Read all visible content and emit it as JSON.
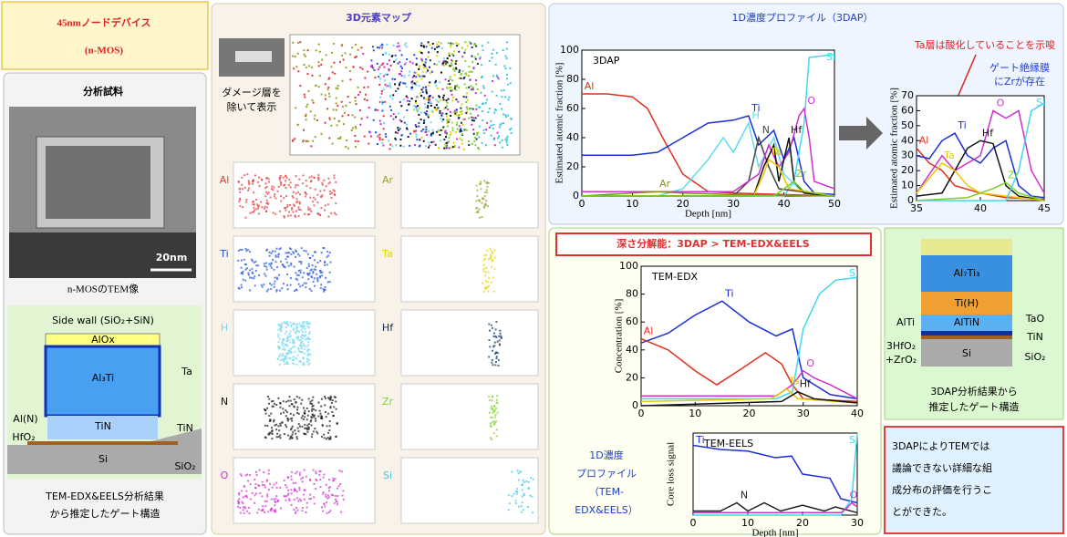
{
  "header": {
    "title": "45nmノードデバイス",
    "subtitle": "(n-MOS)"
  },
  "sample": {
    "heading": "分析試料",
    "scale_bar": "20nm",
    "tem_caption": "n-MOSのTEM像",
    "diagram": {
      "side_wall": "Side wall (SiO₂+SiN)",
      "alox": "AlOx",
      "al3ti": "Al₃Ti",
      "tin": "TiN",
      "si": "Si",
      "ta": "Ta",
      "aln": "Al(N)",
      "tin_side": "TiN",
      "hfo2": "HfO₂",
      "sio2": "SiO₂"
    },
    "caption": [
      "TEM-EDX&EELS分析結果",
      "から推定したゲート構造"
    ]
  },
  "map": {
    "title": "3D元素マップ",
    "note": [
      "ダメージ層を",
      "除いて表示"
    ],
    "elements": [
      {
        "name": "Al",
        "color": "#e03838"
      },
      {
        "name": "Ar",
        "color": "#a0a030"
      },
      {
        "name": "Ti",
        "color": "#2050e0"
      },
      {
        "name": "Ta",
        "color": "#e8d000"
      },
      {
        "name": "H",
        "color": "#70d8f0"
      },
      {
        "name": "Hf",
        "color": "#103060"
      },
      {
        "name": "N",
        "color": "#111111"
      },
      {
        "name": "Zr",
        "color": "#80d030"
      },
      {
        "name": "O",
        "color": "#d030d0"
      },
      {
        "name": "Si",
        "color": "#40c8e0"
      }
    ]
  },
  "profile": {
    "title": "1D濃度プロファイル（3DAP）",
    "resolution": "深さ分解能：3DAP > TEM-EDX&EELS",
    "tem_label": [
      "1D濃度",
      "プロファイル",
      "（TEM-",
      "EDX&EELS）"
    ],
    "annotations": [
      "Ta層は酸化していることを示唆",
      "ゲート絶縁膜",
      "にZrが存在"
    ],
    "charts": [
      {
        "type": "line",
        "label": "3DAP",
        "xlabel": "Depth [nm]",
        "ylabel": "Estimated atomic fraction [%]",
        "xlim": [
          0,
          50
        ],
        "xticks": [
          0,
          10,
          20,
          30,
          40,
          50
        ],
        "ylim": [
          0,
          100
        ],
        "yticks": [
          0,
          20,
          40,
          60,
          80,
          100
        ],
        "series": [
          {
            "name": "Al",
            "color": "#e0301e",
            "x": [
              0,
              5,
              10,
              13,
              16,
              20,
              25,
              30,
              40,
              50
            ],
            "values": [
              70,
              70,
              68,
              60,
              40,
              15,
              3,
              2,
              1,
              0
            ]
          },
          {
            "name": "Ti",
            "color": "#1a2fd8",
            "x": [
              0,
              10,
              15,
              20,
              25,
              30,
              33,
              35,
              38,
              40,
              42,
              44,
              46,
              50
            ],
            "values": [
              28,
              28,
              30,
              40,
              50,
              52,
              55,
              35,
              45,
              25,
              40,
              10,
              2,
              1
            ]
          },
          {
            "name": "H",
            "color": "#60dcec",
            "x": [
              0,
              15,
              20,
              25,
              28,
              30,
              33,
              35,
              38,
              40,
              43
            ],
            "values": [
              0,
              0,
              5,
              25,
              40,
              30,
              50,
              20,
              40,
              15,
              5
            ]
          },
          {
            "name": "Si",
            "color": "#40d8ec",
            "x": [
              0,
              40,
              42,
              44,
              45,
              50
            ],
            "values": [
              0,
              0,
              10,
              50,
              95,
              97
            ]
          },
          {
            "name": "N",
            "color": "#444444",
            "x": [
              0,
              30,
              33,
              35,
              37,
              39,
              50
            ],
            "values": [
              0,
              0,
              10,
              40,
              20,
              5,
              0
            ]
          },
          {
            "name": "O",
            "color": "#d030d0",
            "x": [
              0,
              30,
              35,
              37,
              39,
              41,
              43,
              44,
              45,
              46,
              50
            ],
            "values": [
              3,
              3,
              15,
              35,
              20,
              30,
              55,
              60,
              40,
              10,
              5
            ]
          },
          {
            "name": "Hf",
            "color": "#111111",
            "x": [
              0,
              34,
              36,
              38,
              39,
              41,
              42,
              44,
              50
            ],
            "values": [
              0,
              0,
              20,
              35,
              10,
              40,
              10,
              2,
              0
            ]
          },
          {
            "name": "Ta",
            "color": "#e8c800",
            "x": [
              0,
              34,
              36,
              37,
              39,
              41,
              50
            ],
            "values": [
              0,
              0,
              15,
              25,
              20,
              5,
              0
            ]
          },
          {
            "name": "Ar",
            "color": "#8a8a20",
            "x": [
              0,
              10,
              15,
              20,
              30,
              50
            ],
            "values": [
              0,
              2,
              3,
              2,
              1,
              0
            ]
          },
          {
            "name": "Zr",
            "color": "#7ad030",
            "x": [
              0,
              38,
              40,
              42,
              44,
              50
            ],
            "values": [
              0,
              0,
              5,
              10,
              3,
              0
            ]
          }
        ]
      },
      {
        "type": "line",
        "ylabel": "Estimated atomic fraction [%]",
        "xlim": [
          35,
          45
        ],
        "xticks": [
          35,
          40,
          45
        ],
        "ylim": [
          0,
          70
        ],
        "yticks": [
          0,
          10,
          20,
          30,
          40,
          50,
          60,
          70
        ],
        "series": [
          {
            "name": "Al",
            "color": "#e0301e",
            "x": [
              35,
              36,
              37,
              38,
              40,
              42,
              45
            ],
            "values": [
              35,
              25,
              20,
              10,
              5,
              2,
              1
            ]
          },
          {
            "name": "Ti",
            "color": "#1a2fd8",
            "x": [
              35,
              36,
              37,
              38,
              39,
              40,
              41,
              42,
              43,
              44,
              45
            ],
            "values": [
              30,
              28,
              40,
              45,
              30,
              25,
              35,
              40,
              10,
              3,
              2
            ]
          },
          {
            "name": "O",
            "color": "#d030d0",
            "x": [
              35,
              37,
              38,
              39,
              40,
              41,
              42,
              43,
              44,
              45
            ],
            "values": [
              5,
              30,
              20,
              25,
              30,
              60,
              55,
              60,
              20,
              5
            ]
          },
          {
            "name": "Hf",
            "color": "#111111",
            "x": [
              35,
              37,
              38,
              39,
              40,
              41,
              42,
              43,
              45
            ],
            "values": [
              3,
              5,
              20,
              35,
              40,
              38,
              10,
              3,
              0
            ]
          },
          {
            "name": "Ta",
            "color": "#e8c800",
            "x": [
              35,
              36,
              37,
              38,
              39,
              40,
              45
            ],
            "values": [
              5,
              15,
              25,
              20,
              10,
              5,
              0
            ]
          },
          {
            "name": "Si",
            "color": "#40d8ec",
            "x": [
              35,
              42,
              43,
              44,
              45
            ],
            "values": [
              0,
              0,
              20,
              60,
              65
            ]
          },
          {
            "name": "Zr",
            "color": "#7ad030",
            "x": [
              35,
              39,
              41,
              42,
              43,
              45
            ],
            "values": [
              0,
              2,
              8,
              12,
              5,
              0
            ]
          }
        ]
      },
      {
        "type": "line",
        "label": "TEM-EDX",
        "ylabel": "Concentration [%]",
        "xlim": [
          0,
          40
        ],
        "xticks": [
          0,
          10,
          20,
          30,
          40
        ],
        "ylim": [
          0,
          100
        ],
        "yticks": [
          0,
          20,
          40,
          60,
          80,
          100
        ],
        "series": [
          {
            "name": "Ti",
            "color": "#1a2fd8",
            "x": [
              0,
              5,
              10,
              15,
              20,
              25,
              28,
              30,
              35,
              40
            ],
            "values": [
              45,
              52,
              65,
              75,
              60,
              50,
              55,
              20,
              8,
              5
            ]
          },
          {
            "name": "Al",
            "color": "#e0301e",
            "x": [
              0,
              5,
              10,
              14,
              18,
              23,
              26,
              28,
              30,
              40
            ],
            "values": [
              48,
              40,
              25,
              15,
              25,
              38,
              30,
              15,
              5,
              3
            ]
          },
          {
            "name": "Si",
            "color": "#40d8ec",
            "x": [
              0,
              25,
              28,
              30,
              33,
              36,
              40
            ],
            "values": [
              5,
              5,
              10,
              55,
              80,
              90,
              92
            ]
          },
          {
            "name": "O",
            "color": "#d030d0",
            "x": [
              0,
              25,
              28,
              30,
              32,
              35,
              40
            ],
            "values": [
              7,
              7,
              15,
              25,
              20,
              15,
              5
            ]
          },
          {
            "name": "Ta",
            "color": "#e8c800",
            "x": [
              0,
              24,
              27,
              29,
              40
            ],
            "values": [
              3,
              5,
              12,
              5,
              2
            ]
          },
          {
            "name": "Hf",
            "color": "#111111",
            "x": [
              0,
              26,
              29,
              32,
              40
            ],
            "values": [
              0,
              3,
              10,
              5,
              2
            ]
          }
        ]
      },
      {
        "type": "line",
        "label": "TEM-EELS",
        "xlabel": "Depth [nm]",
        "ylabel": "Core loss signal",
        "xlim": [
          0,
          30
        ],
        "xticks": [
          0,
          10,
          20,
          30
        ],
        "ylim": [
          0,
          100
        ],
        "series": [
          {
            "name": "Ti",
            "color": "#1a2fd8",
            "x": [
              0,
              5,
              10,
              15,
              18,
              20,
              25,
              27,
              30
            ],
            "values": [
              85,
              80,
              78,
              70,
              72,
              50,
              45,
              20,
              15
            ]
          },
          {
            "name": "Si",
            "color": "#40d8ec",
            "x": [
              0,
              27,
              29,
              30
            ],
            "values": [
              0,
              0,
              20,
              100
            ]
          },
          {
            "name": "N",
            "color": "#222222",
            "x": [
              0,
              5,
              8,
              10,
              13,
              16,
              20,
              24,
              26,
              30
            ],
            "values": [
              5,
              5,
              15,
              5,
              15,
              5,
              12,
              5,
              10,
              3
            ]
          },
          {
            "name": "O",
            "color": "#d030d0",
            "x": [
              0,
              27,
              28,
              29,
              30
            ],
            "values": [
              3,
              3,
              8,
              15,
              10
            ]
          }
        ]
      }
    ]
  },
  "gate": {
    "al7ti3": "Al₇Ti₃",
    "tih": "Ti(H)",
    "altin": "AlTiN",
    "alti": "AlTi",
    "tao": "TaO",
    "tin": "TiN",
    "hfo2": "3HfO₂",
    "zro2": "+ZrO₂",
    "sio2": "SiO₂",
    "si": "Si",
    "caption": [
      "3DAP分析結果から",
      "推定したゲート構造"
    ]
  },
  "conclusion": [
    "3DAPによりTEMでは",
    "議論できない詳細な組",
    "成分布の評価を行うこ",
    "とができた。"
  ]
}
